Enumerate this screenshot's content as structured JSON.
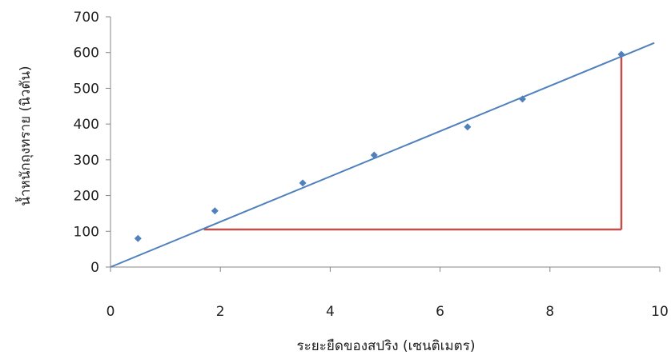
{
  "chart_data": {
    "type": "scatter",
    "title": "",
    "xlabel": "ระยะยืดของสปริง (เซนติเมตร)",
    "ylabel": "น้ำหนักถุงทราย  (นิวตัน)",
    "xlim": [
      0,
      10
    ],
    "ylim": [
      0,
      700
    ],
    "x_ticks": [
      "0",
      "2",
      "4",
      "6",
      "8",
      "10"
    ],
    "y_ticks": [
      "0",
      "100",
      "200",
      "300",
      "400",
      "500",
      "600",
      "700"
    ],
    "grid": false,
    "legend": "none",
    "series": [
      {
        "marker": "diamond",
        "color": "#4f81bd",
        "x": [
          0.5,
          1.9,
          3.5,
          4.8,
          6.5,
          7.5,
          9.3
        ],
        "y": [
          80,
          157,
          235,
          313,
          392,
          470,
          595
        ]
      }
    ],
    "trendline": {
      "color": "#4f81bd",
      "x": [
        0,
        9.9
      ],
      "y": [
        0,
        627
      ]
    },
    "slope_triangle": {
      "color": "#c0504d",
      "x_start": 1.7,
      "x_end": 9.3,
      "y_base": 105,
      "y_top": 595
    }
  }
}
